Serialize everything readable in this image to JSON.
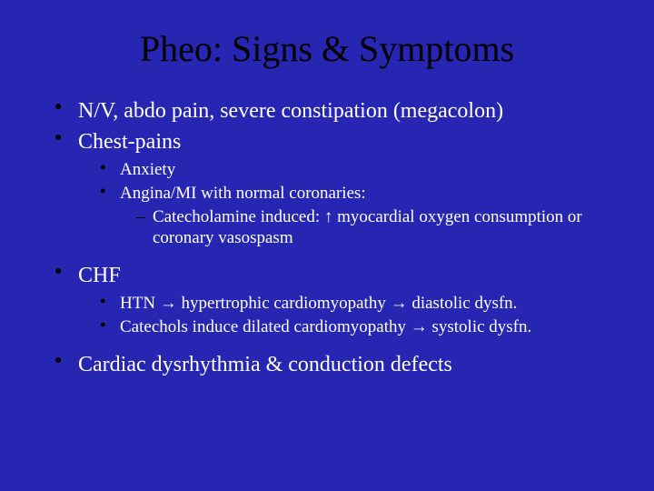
{
  "slide": {
    "title": "Pheo: Signs & Symptoms",
    "background_color": "#2626b2",
    "title_color": "#000000",
    "text_color": "#ffffff",
    "bullet_color": "#000000",
    "title_fontsize": 40,
    "l1_fontsize": 24,
    "l2_fontsize": 19,
    "l3_fontsize": 19,
    "items": {
      "nv": "N/V, abdo pain, severe constipation (megacolon)",
      "chest": "Chest-pains",
      "chest_sub": {
        "anxiety": "Anxiety",
        "angina": "Angina/MI with normal coronaries:",
        "catech": "Catecholamine induced: ↑ myocardial oxygen consumption or coronary vasospasm"
      },
      "chf": "CHF",
      "chf_sub": {
        "htn": "HTN → hypertrophic cardiomyopathy → diastolic dysfn.",
        "catechols": "Catechols induce dilated cardiomyopathy → systolic dysfn."
      },
      "cardiac": "Cardiac dysrhythmia & conduction defects"
    }
  }
}
